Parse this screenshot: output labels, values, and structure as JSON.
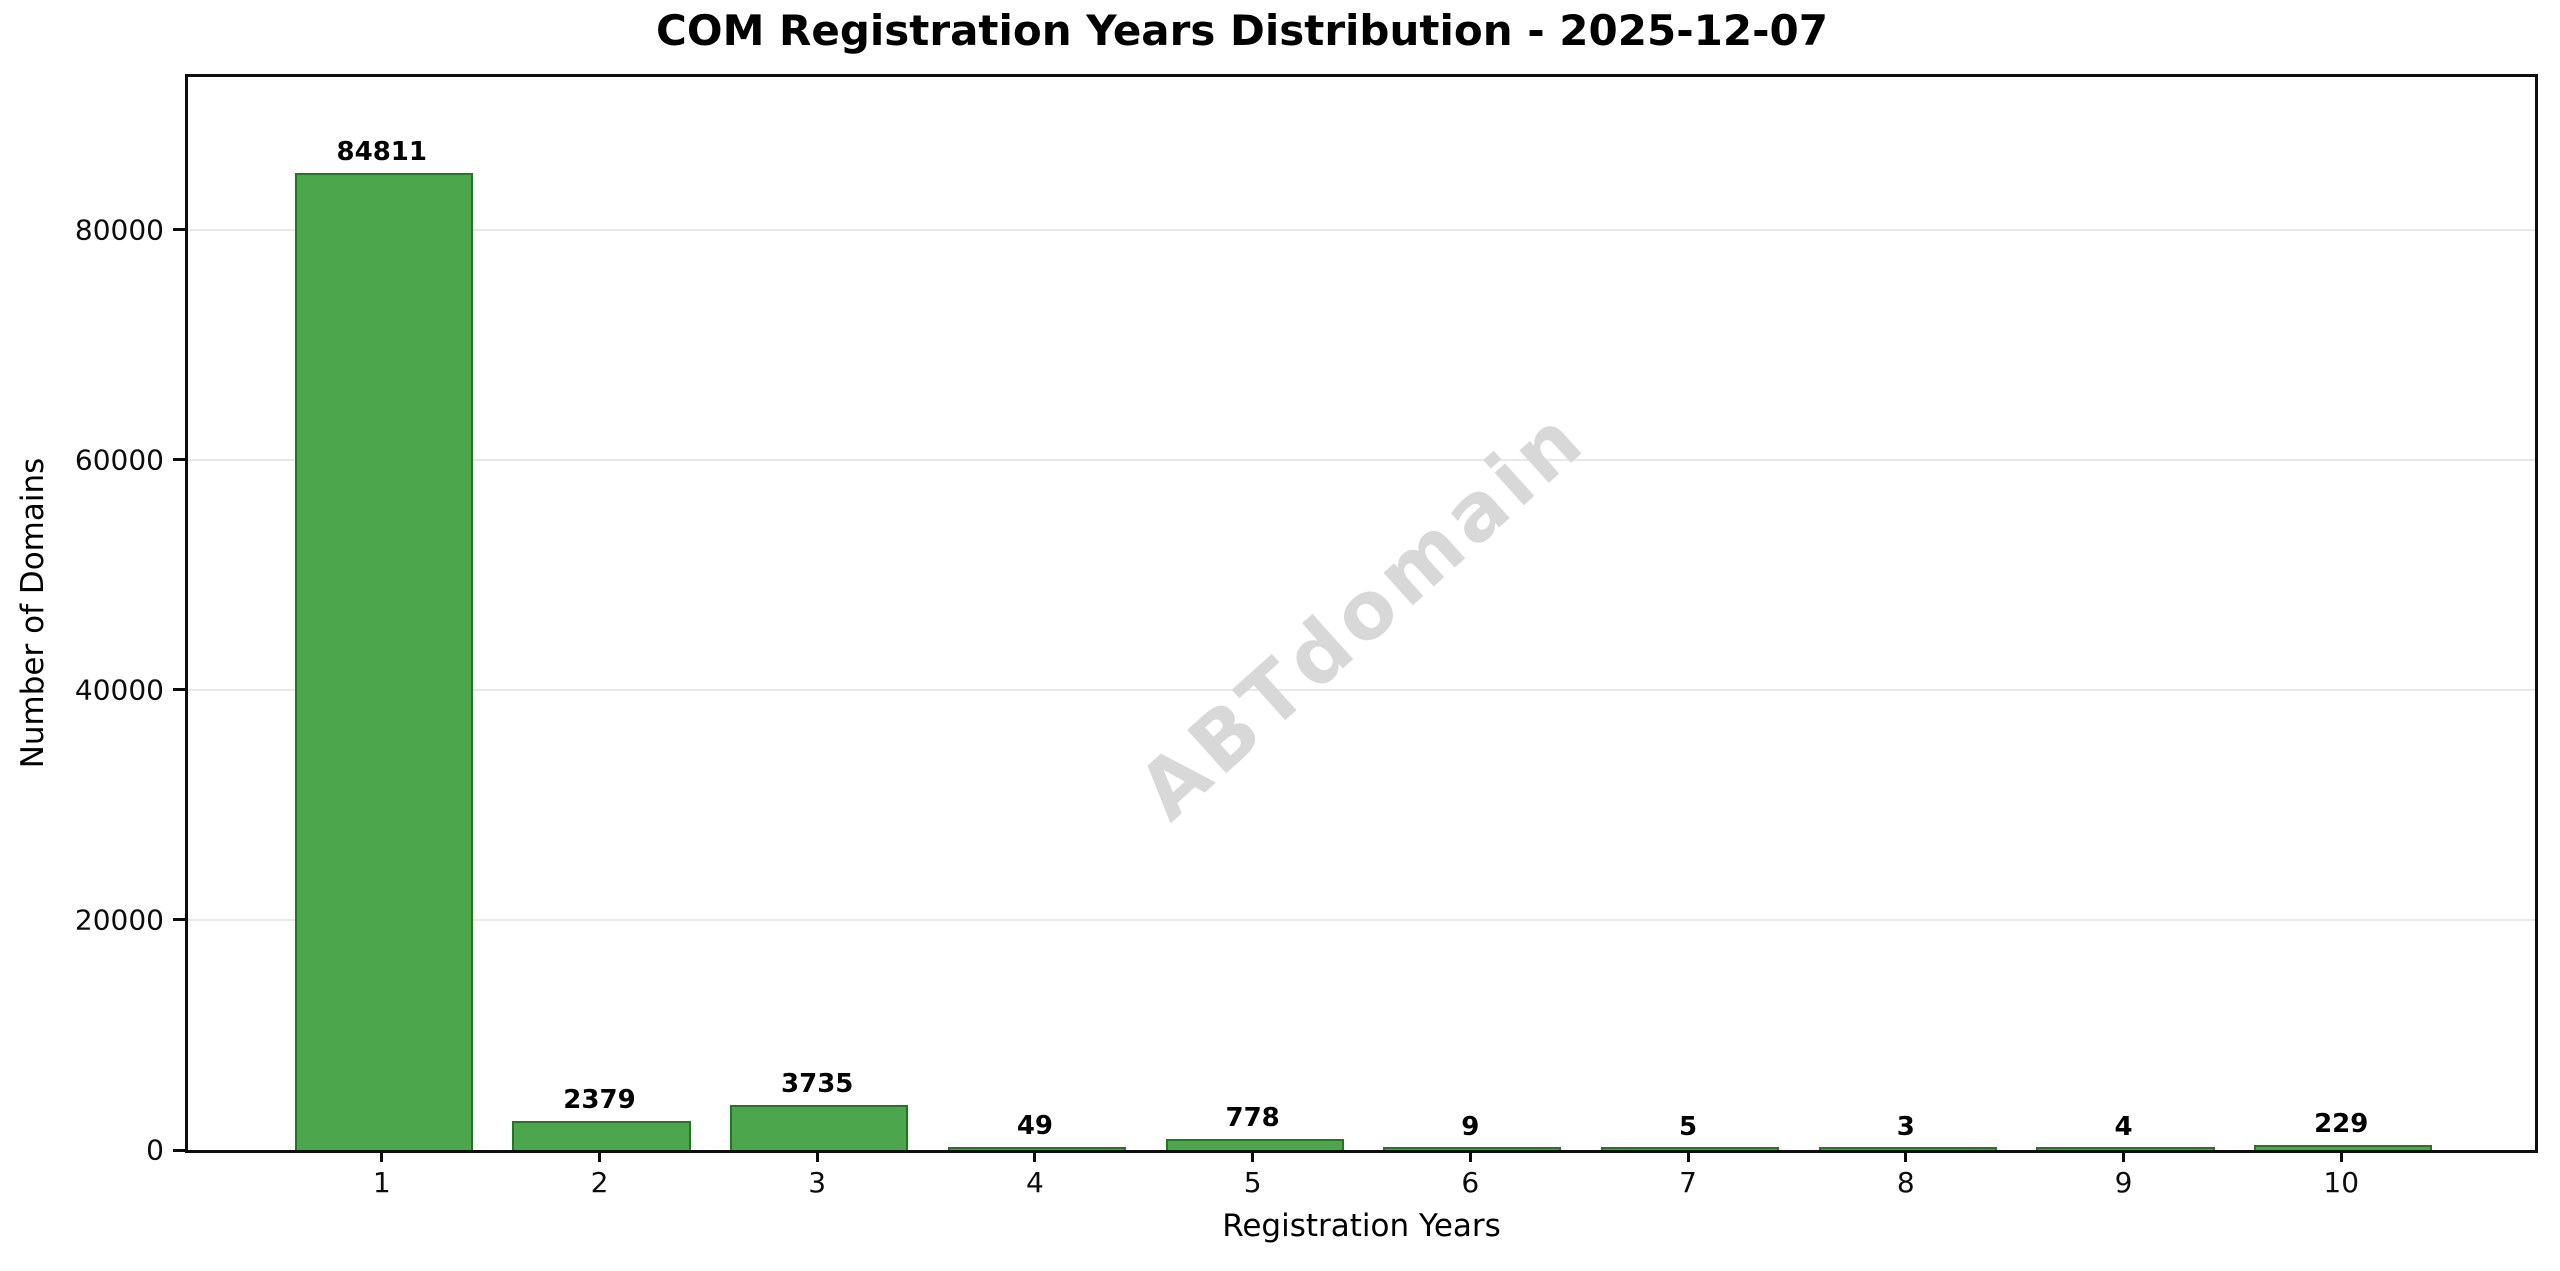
{
  "chart_data": {
    "type": "bar",
    "title": "COM Registration Years Distribution - 2025-12-07",
    "xlabel": "Registration Years",
    "ylabel": "Number of Domains",
    "categories": [
      "1",
      "2",
      "3",
      "4",
      "5",
      "6",
      "7",
      "8",
      "9",
      "10"
    ],
    "values": [
      84811,
      2379,
      3735,
      49,
      778,
      9,
      5,
      3,
      4,
      229
    ],
    "bar_labels": [
      "84811",
      "2379",
      "3735",
      "49",
      "778",
      "9",
      "5",
      "3",
      "4",
      "229"
    ],
    "yticks": [
      0,
      20000,
      40000,
      60000,
      80000
    ],
    "ytick_labels": [
      "0",
      "20000",
      "40000",
      "60000",
      "80000"
    ],
    "ylim": [
      0,
      93300
    ],
    "xlim": [
      0.11,
      10.89
    ],
    "bar_width": 0.8,
    "grid": "horizontal-only",
    "legend_position": "none",
    "watermark": "ABTdomain",
    "colors": {
      "bar_fill": "#4CA64C",
      "bar_edge": "#1E7A1E",
      "gridline": "#E8E8E8",
      "spine": "#0D0D0D",
      "watermark": "#D8D8D8",
      "text": "#000000"
    }
  }
}
